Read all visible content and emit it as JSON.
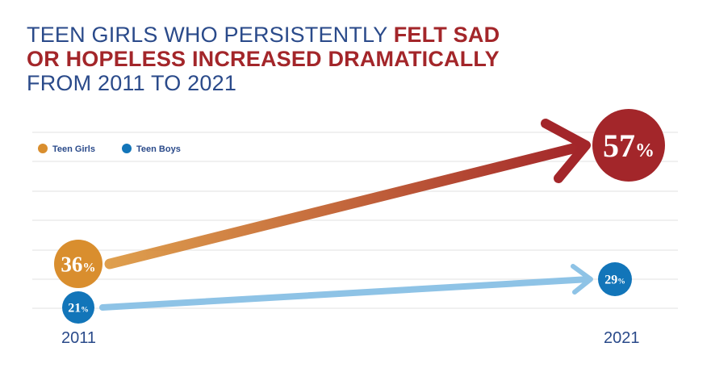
{
  "chart_data": {
    "type": "line",
    "title_parts": [
      "TEEN GIRLS WHO PERSISTENTLY ",
      "FELT SAD OR HOPELESS INCREASED DRAMATICALLY",
      " FROM 2011 TO 2021"
    ],
    "categories": [
      "2011",
      "2021"
    ],
    "series": [
      {
        "name": "Teen Girls",
        "values": [
          36,
          57
        ],
        "labels": [
          "36",
          "57"
        ],
        "color": "#d98e2e",
        "end_color": "#a3262a"
      },
      {
        "name": "Teen Boys",
        "values": [
          21,
          29
        ],
        "labels": [
          "21",
          "29"
        ],
        "color": "#1275b9",
        "line_color": "#8ec3e6"
      }
    ],
    "unit": "%",
    "legend_position": "top-left",
    "grid": true
  }
}
